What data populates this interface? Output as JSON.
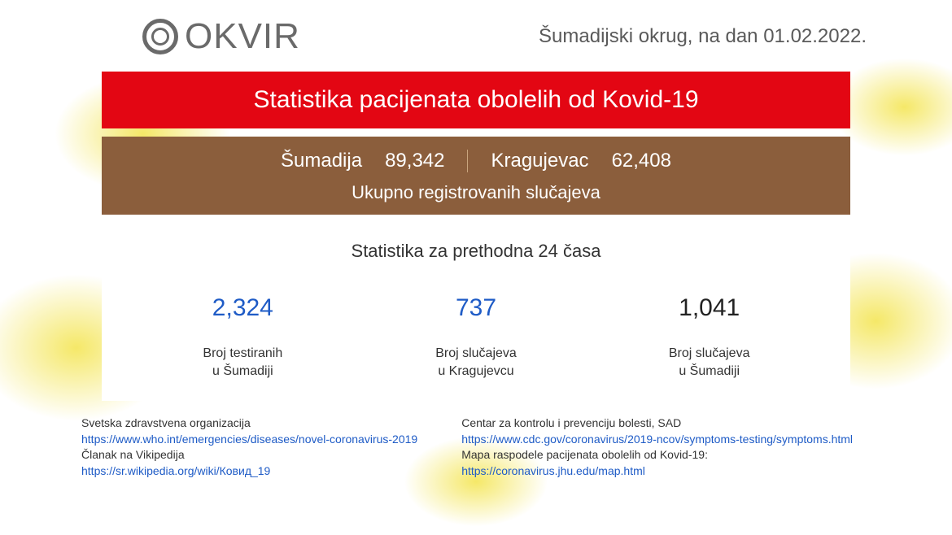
{
  "header": {
    "logo_text": "OKVIR",
    "region_label": "Šumadijski okrug, na dan",
    "date": "01.02.2022."
  },
  "red_banner": {
    "title": "Statistika pacijenata obolelih od Kovid-19",
    "background_color": "#e30613",
    "text_color": "#ffffff"
  },
  "brown_banner": {
    "region1_label": "Šumadija",
    "region1_value": "89,342",
    "region2_label": "Kragujevac",
    "region2_value": "62,408",
    "subtitle": "Ukupno registrovanih slučajeva",
    "background_color": "#8b5e3c",
    "text_color": "#ffffff"
  },
  "white_panel": {
    "title": "Statistika za prethodna 24 časa",
    "stats": [
      {
        "value": "2,324",
        "color": "blue",
        "label_line1": "Broj testiranih",
        "label_line2": "u Šumadiji"
      },
      {
        "value": "737",
        "color": "blue",
        "label_line1": "Broj slučajeva",
        "label_line2": "u Kragujevcu"
      },
      {
        "value": "1,041",
        "color": "black",
        "label_line1": "Broj slučajeva",
        "label_line2": "u Šumadiji"
      }
    ],
    "value_color_blue": "#1e5bc6",
    "value_color_black": "#222222"
  },
  "sources": {
    "left": [
      {
        "title": "Svetska zdravstvena organizacija",
        "link": "https://www.who.int/emergencies/diseases/novel-coronavirus-2019"
      },
      {
        "title": "Članak na Vikipedija",
        "link": "https://sr.wikipedia.org/wiki/Ковид_19"
      }
    ],
    "right": [
      {
        "title": "Centar za kontrolu i prevenciju bolesti, SAD",
        "link": "https://www.cdc.gov/coronavirus/2019-ncov/symptoms-testing/symptoms.html"
      },
      {
        "title": "Mapa raspodele pacijenata obolelih od Kovid-19:",
        "link": "https://coronavirus.jhu.edu/map.html"
      }
    ],
    "link_color": "#1e5bc6"
  }
}
